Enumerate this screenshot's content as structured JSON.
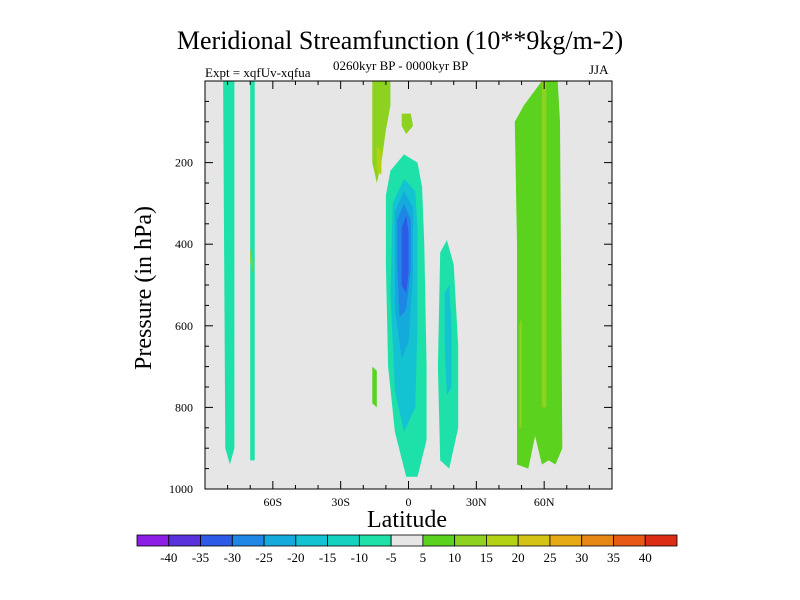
{
  "chart_data": {
    "type": "contour",
    "title": "Meridional Streamfunction (10**9kg/m-2)",
    "left_label": "Expt = xqfUv-xqfua",
    "center_label": "0260kyr BP - 0000kyr BP",
    "right_label": "JJA",
    "xlabel": "Latitude",
    "ylabel": "Pressure (in hPa)",
    "xlim": [
      -90,
      90
    ],
    "ylim": [
      1000,
      0
    ],
    "x_ticks": [
      -60,
      -30,
      0,
      30,
      60
    ],
    "x_tick_labels": [
      "60S",
      "30S",
      "0",
      "30N",
      "60N"
    ],
    "y_ticks": [
      200,
      400,
      600,
      800,
      1000
    ],
    "y_tick_labels": [
      "200",
      "400",
      "600",
      "800",
      "1000"
    ],
    "colorbar": {
      "levels": [
        -40,
        -35,
        -30,
        -25,
        -20,
        -15,
        -10,
        -5,
        5,
        10,
        15,
        20,
        25,
        30,
        35,
        40
      ],
      "labels": [
        "-40",
        "-35",
        "-30",
        "-25",
        "-20",
        "-15",
        "-10",
        "-5",
        "5",
        "10",
        "15",
        "20",
        "25",
        "30",
        "35",
        "40"
      ],
      "colors": [
        "#8c1ee6",
        "#5a32dc",
        "#2d5ae6",
        "#1e87e6",
        "#14aadc",
        "#14c3d2",
        "#14d2be",
        "#1ee1aa",
        "#e6e6e6",
        "#5ad21e",
        "#8cd21e",
        "#b4d214",
        "#d2c314",
        "#e6aa14",
        "#e68714",
        "#e65a14",
        "#dc2d14"
      ]
    },
    "regions": [
      {
        "name": "southern-high-lat-cell-a",
        "level": -5,
        "color": "#1ee1aa",
        "points": [
          [
            -82,
            0
          ],
          [
            -77,
            0
          ],
          [
            -77,
            900
          ],
          [
            -79,
            940
          ],
          [
            -81,
            900
          ]
        ]
      },
      {
        "name": "southern-high-lat-cell-b",
        "level": -5,
        "color": "#1ee1aa",
        "points": [
          [
            -70,
            0
          ],
          [
            -68,
            0
          ],
          [
            -68,
            930
          ],
          [
            -70,
            930
          ]
        ]
      },
      {
        "name": "southern-subtropics-pos",
        "level": 5,
        "color": "#8cd21e",
        "points": [
          [
            -70,
            410
          ],
          [
            -69,
            440
          ],
          [
            -69,
            470
          ],
          [
            -70,
            440
          ]
        ]
      },
      {
        "name": "southern-small-pos",
        "level": 5,
        "color": "#5ad21e",
        "points": [
          [
            -16,
            700
          ],
          [
            -14,
            710
          ],
          [
            -14,
            800
          ],
          [
            -16,
            790
          ]
        ]
      },
      {
        "name": "upper-equatorial-pos",
        "level": 5,
        "color": "#8cd21e",
        "points": [
          [
            -16,
            0
          ],
          [
            -8,
            0
          ],
          [
            -8,
            60
          ],
          [
            -10,
            120
          ],
          [
            -12,
            200
          ],
          [
            -14,
            250
          ],
          [
            -16,
            200
          ]
        ]
      },
      {
        "name": "upper-equatorial-pos-core",
        "level": 10,
        "color": "#b4d214",
        "points": [
          [
            -14,
            160
          ],
          [
            -12,
            170
          ],
          [
            -12,
            230
          ],
          [
            -14,
            220
          ]
        ]
      },
      {
        "name": "upper-equatorial-pos-b",
        "level": 5,
        "color": "#8cd21e",
        "points": [
          [
            -3,
            80
          ],
          [
            1,
            80
          ],
          [
            2,
            110
          ],
          [
            -1,
            130
          ],
          [
            -3,
            110
          ]
        ]
      },
      {
        "name": "deep-equatorial-neg",
        "level": -5,
        "color": "#1ee1aa",
        "points": [
          [
            -8,
            220
          ],
          [
            -2,
            180
          ],
          [
            4,
            200
          ],
          [
            6,
            260
          ],
          [
            7,
            400
          ],
          [
            8,
            700
          ],
          [
            8,
            880
          ],
          [
            4,
            970
          ],
          [
            -1,
            970
          ],
          [
            -6,
            860
          ],
          [
            -9,
            700
          ],
          [
            -10,
            450
          ],
          [
            -10,
            280
          ]
        ]
      },
      {
        "name": "deep-equatorial-neg-10",
        "level": -10,
        "color": "#14c3d2",
        "points": [
          [
            -7,
            300
          ],
          [
            -2,
            240
          ],
          [
            3,
            270
          ],
          [
            4,
            360
          ],
          [
            4,
            600
          ],
          [
            3,
            800
          ],
          [
            -2,
            860
          ],
          [
            -6,
            760
          ],
          [
            -8,
            520
          ]
        ]
      },
      {
        "name": "deep-equatorial-neg-15",
        "level": -15,
        "color": "#14aadc",
        "points": [
          [
            -6,
            320
          ],
          [
            -2,
            270
          ],
          [
            2,
            310
          ],
          [
            2,
            480
          ],
          [
            0,
            640
          ],
          [
            -3,
            680
          ],
          [
            -6,
            560
          ]
        ]
      },
      {
        "name": "deep-equatorial-neg-20",
        "level": -20,
        "color": "#1e87e6",
        "points": [
          [
            -5,
            340
          ],
          [
            -2,
            300
          ],
          [
            1,
            340
          ],
          [
            1,
            460
          ],
          [
            -1,
            560
          ],
          [
            -4,
            580
          ],
          [
            -5,
            450
          ]
        ]
      },
      {
        "name": "deep-equatorial-neg-25",
        "level": -25,
        "color": "#2d5ae6",
        "points": [
          [
            -3,
            360
          ],
          [
            -1,
            330
          ],
          [
            0,
            370
          ],
          [
            0,
            470
          ],
          [
            -1,
            520
          ],
          [
            -3,
            500
          ]
        ]
      },
      {
        "name": "nh-subtropical-neg",
        "level": -5,
        "color": "#1ee1aa",
        "points": [
          [
            14,
            420
          ],
          [
            17,
            390
          ],
          [
            20,
            450
          ],
          [
            22,
            650
          ],
          [
            22,
            850
          ],
          [
            18,
            950
          ],
          [
            14,
            930
          ],
          [
            13,
            700
          ]
        ]
      },
      {
        "name": "nh-subtropical-neg-10",
        "level": -10,
        "color": "#14c3d2",
        "points": [
          [
            16,
            520
          ],
          [
            18,
            500
          ],
          [
            19,
            600
          ],
          [
            19,
            750
          ],
          [
            17,
            770
          ],
          [
            16,
            650
          ]
        ]
      },
      {
        "name": "nh-midlat-pos",
        "level": 5,
        "color": "#5ad21e",
        "points": [
          [
            47,
            100
          ],
          [
            51,
            60
          ],
          [
            59,
            0
          ],
          [
            63,
            0
          ],
          [
            66,
            0
          ],
          [
            67,
            100
          ],
          [
            68,
            900
          ],
          [
            65,
            940
          ],
          [
            62,
            930
          ],
          [
            59,
            940
          ],
          [
            56,
            870
          ],
          [
            53,
            950
          ],
          [
            48,
            940
          ],
          [
            48,
            400
          ]
        ]
      },
      {
        "name": "nh-midlat-pos-10",
        "level": 10,
        "color": "#8cd21e",
        "points": [
          [
            59,
            0
          ],
          [
            61,
            0
          ],
          [
            61,
            800
          ],
          [
            59,
            800
          ]
        ]
      },
      {
        "name": "nh-midlat-pos-10b",
        "level": 10,
        "color": "#8cd21e",
        "points": [
          [
            49,
            600
          ],
          [
            50,
            580
          ],
          [
            50,
            850
          ],
          [
            49,
            850
          ]
        ]
      }
    ]
  }
}
